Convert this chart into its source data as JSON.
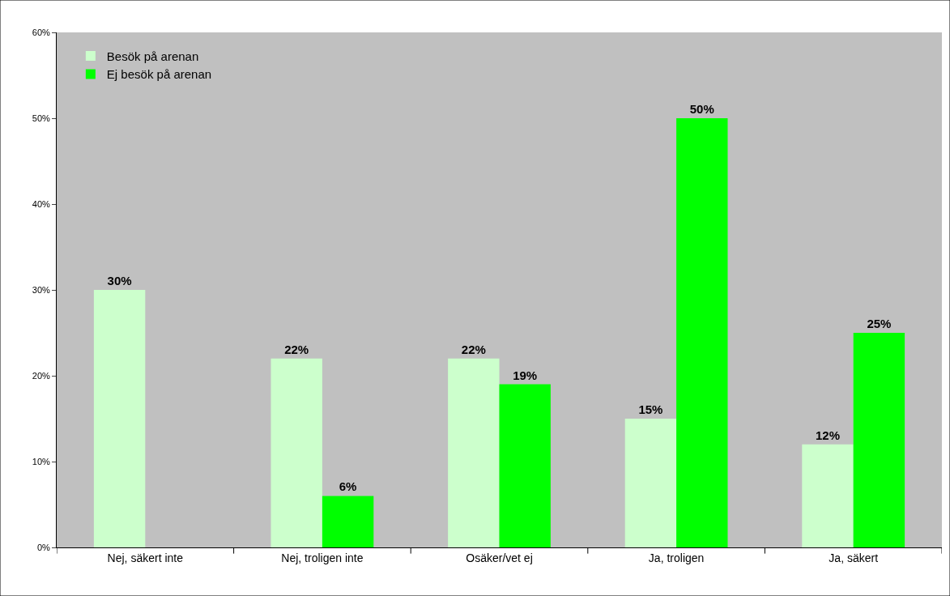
{
  "chart_data": {
    "type": "bar",
    "categories": [
      "Nej, säkert inte",
      "Nej, troligen inte",
      "Osäker/vet ej",
      "Ja, troligen",
      "Ja, säkert"
    ],
    "series": [
      {
        "name": "Besök på arenan",
        "color": "#ccffcc",
        "values": [
          30,
          22,
          22,
          15,
          12
        ],
        "value_labels": [
          "30%",
          "22%",
          "22%",
          "15%",
          "12%"
        ]
      },
      {
        "name": "Ej besök på arenan",
        "color": "#00ff00",
        "values": [
          null,
          6,
          19,
          50,
          25
        ],
        "value_labels": [
          null,
          "6%",
          "19%",
          "50%",
          "25%"
        ]
      }
    ],
    "ylim": [
      0,
      60
    ],
    "yticks": [
      {
        "value": 0,
        "label": "0%"
      },
      {
        "value": 10,
        "label": "10%"
      },
      {
        "value": 20,
        "label": "20%"
      },
      {
        "value": 30,
        "label": "30%"
      },
      {
        "value": 40,
        "label": "40%"
      },
      {
        "value": 50,
        "label": "50%"
      },
      {
        "value": 60,
        "label": "60%"
      }
    ],
    "grid": false,
    "legend": "top left"
  }
}
